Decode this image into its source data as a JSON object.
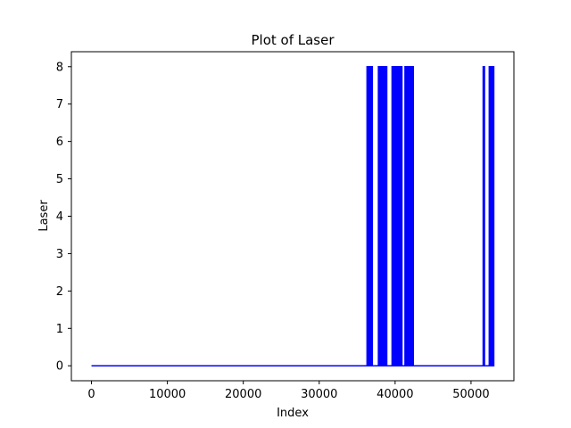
{
  "chart_data": {
    "type": "line",
    "title": "Plot of Laser",
    "xlabel": "Index",
    "ylabel": "Laser",
    "xlim": [
      -2650,
      55650
    ],
    "ylim": [
      -0.4,
      8.4
    ],
    "xticks": [
      0,
      10000,
      20000,
      30000,
      40000,
      50000
    ],
    "yticks": [
      0,
      1,
      2,
      3,
      4,
      5,
      6,
      7,
      8
    ],
    "grid": false,
    "legend": "none",
    "series": [
      {
        "color": "#0000ff",
        "baseline": 0,
        "high_value": 8,
        "x_range": [
          0,
          53000
        ],
        "pulse_bands": [
          [
            36300,
            36600
          ],
          [
            36750,
            37000
          ],
          [
            37800,
            38900
          ],
          [
            39600,
            40900
          ],
          [
            41300,
            42400
          ],
          [
            51600,
            51700
          ],
          [
            52400,
            53000
          ]
        ]
      }
    ]
  }
}
